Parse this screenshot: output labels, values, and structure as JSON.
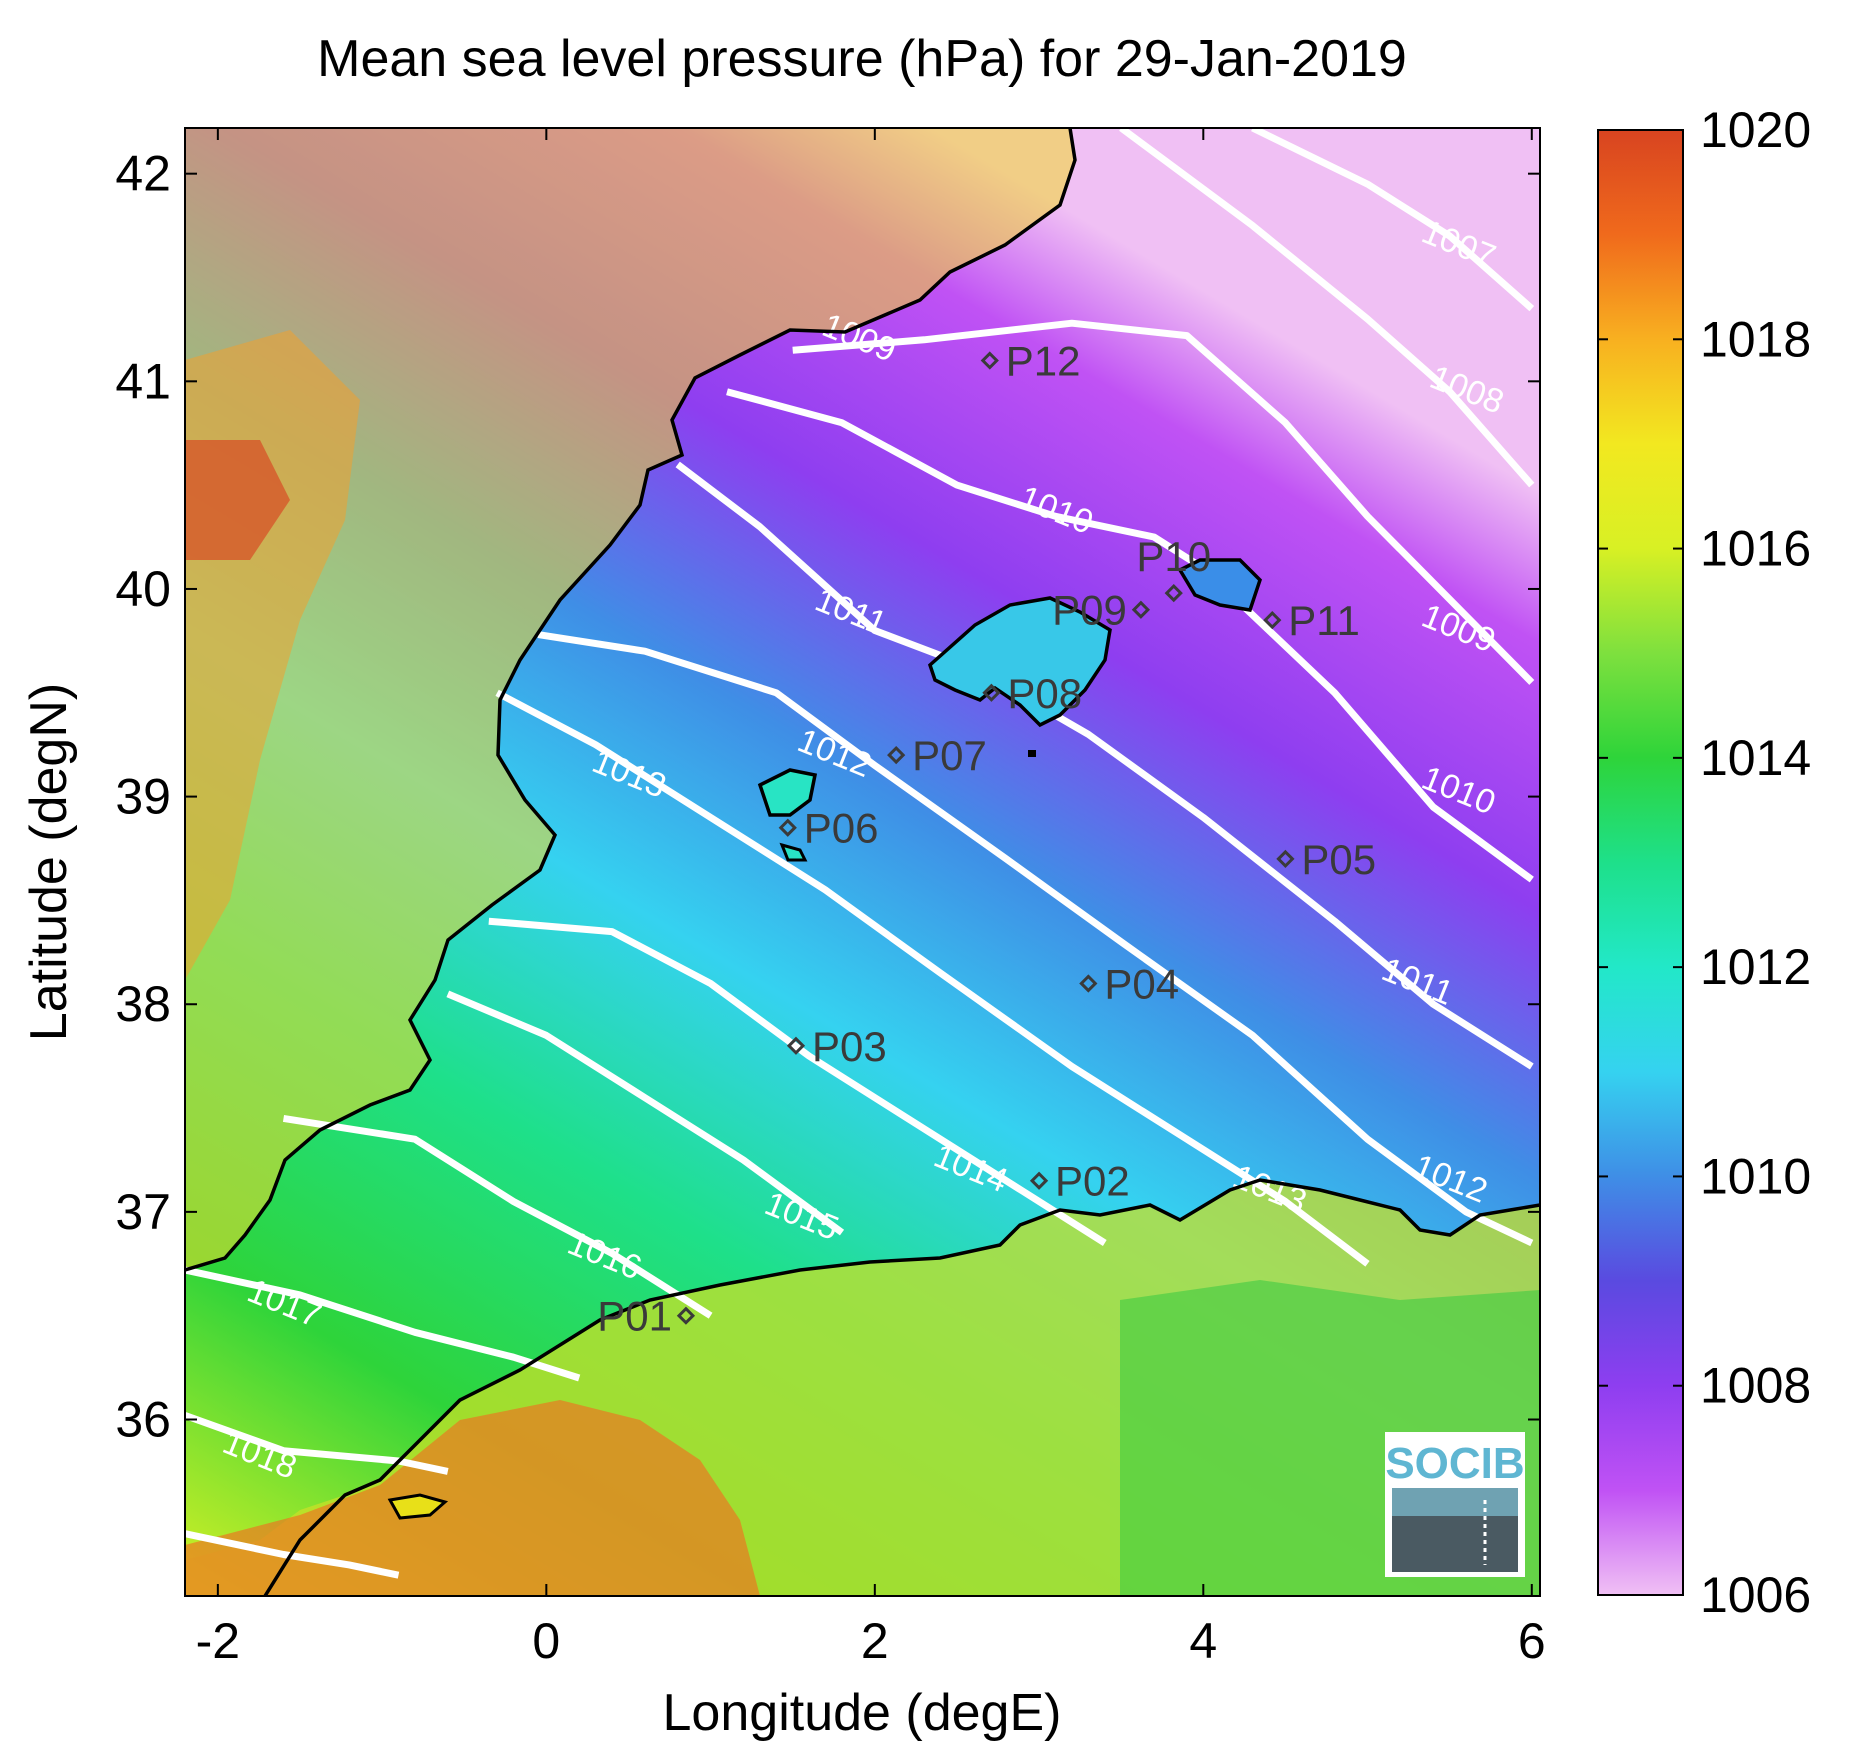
{
  "title": "Mean sea level pressure (hPa) for 29-Jan-2019",
  "xlabel": "Longitude (degE)",
  "ylabel": "Latitude (degN)",
  "logo_text": "SOCIB",
  "map": {
    "lon_range": [
      -2.2,
      6.05
    ],
    "lat_range": [
      35.15,
      42.22
    ],
    "x_ticks": [
      {
        "v": -2,
        "t": "-2"
      },
      {
        "v": 0,
        "t": "0"
      },
      {
        "v": 2,
        "t": "2"
      },
      {
        "v": 4,
        "t": "4"
      },
      {
        "v": 6,
        "t": "6"
      }
    ],
    "y_ticks": [
      {
        "v": 36,
        "t": "36"
      },
      {
        "v": 37,
        "t": "37"
      },
      {
        "v": 38,
        "t": "38"
      },
      {
        "v": 39,
        "t": "39"
      },
      {
        "v": 40,
        "t": "40"
      },
      {
        "v": 41,
        "t": "41"
      },
      {
        "v": 42,
        "t": "42"
      }
    ]
  },
  "colorbar": {
    "range": [
      1006,
      1020
    ],
    "ticks": [
      {
        "v": 1006,
        "t": "1006"
      },
      {
        "v": 1008,
        "t": "1008"
      },
      {
        "v": 1010,
        "t": "1010"
      },
      {
        "v": 1012,
        "t": "1012"
      },
      {
        "v": 1014,
        "t": "1014"
      },
      {
        "v": 1016,
        "t": "1016"
      },
      {
        "v": 1018,
        "t": "1018"
      },
      {
        "v": 1020,
        "t": "1020"
      }
    ],
    "stops": [
      {
        "v": 1006,
        "c": "#f0c0f4"
      },
      {
        "v": 1007,
        "c": "#c052f4"
      },
      {
        "v": 1008,
        "c": "#8e3ef0"
      },
      {
        "v": 1009,
        "c": "#5a4ae0"
      },
      {
        "v": 1010,
        "c": "#3f8ee6"
      },
      {
        "v": 1011,
        "c": "#35d2f0"
      },
      {
        "v": 1012,
        "c": "#22e8c8"
      },
      {
        "v": 1013,
        "c": "#1ee08a"
      },
      {
        "v": 1014,
        "c": "#2ed43a"
      },
      {
        "v": 1015,
        "c": "#7ee03e"
      },
      {
        "v": 1016,
        "c": "#d8f024"
      },
      {
        "v": 1017,
        "c": "#f2e820"
      },
      {
        "v": 1018,
        "c": "#f8b020"
      },
      {
        "v": 1019,
        "c": "#f06a1c"
      },
      {
        "v": 1020,
        "c": "#d84420"
      }
    ]
  },
  "contours": [
    {
      "label": "1007",
      "label_lon": 5.55,
      "label_lat": 41.65,
      "pts": [
        [
          4.3,
          42.22
        ],
        [
          5.0,
          41.95
        ],
        [
          5.5,
          41.7
        ],
        [
          6.0,
          41.35
        ]
      ]
    },
    {
      "label": "1008",
      "label_lon": 5.6,
      "label_lat": 40.95,
      "pts": [
        [
          3.5,
          42.22
        ],
        [
          4.3,
          41.75
        ],
        [
          5.0,
          41.3
        ],
        [
          5.5,
          40.95
        ],
        [
          6.0,
          40.5
        ]
      ]
    },
    {
      "label": "1009",
      "label_lon": 1.9,
      "label_lat": 41.2,
      "pts": [
        [
          1.5,
          41.15
        ],
        [
          2.3,
          41.2
        ],
        [
          3.2,
          41.28
        ],
        [
          3.9,
          41.22
        ],
        [
          4.5,
          40.8
        ],
        [
          5.0,
          40.35
        ],
        [
          5.5,
          39.95
        ],
        [
          6.0,
          39.55
        ]
      ]
    },
    {
      "label": "1009",
      "label_lon": 5.55,
      "label_lat": 39.8,
      "pts": []
    },
    {
      "label": "1010",
      "label_lon": 3.1,
      "label_lat": 40.37,
      "pts": [
        [
          1.1,
          40.95
        ],
        [
          1.8,
          40.8
        ],
        [
          2.5,
          40.5
        ],
        [
          3.1,
          40.35
        ],
        [
          3.7,
          40.25
        ],
        [
          4.0,
          40.1
        ],
        [
          4.8,
          39.5
        ],
        [
          5.4,
          38.95
        ],
        [
          6.0,
          38.6
        ]
      ]
    },
    {
      "label": "1010",
      "label_lon": 5.55,
      "label_lat": 39.02,
      "pts": []
    },
    {
      "label": "1011",
      "label_lon": 1.85,
      "label_lat": 39.88,
      "pts": [
        [
          0.8,
          40.6
        ],
        [
          1.3,
          40.3
        ],
        [
          2.0,
          39.8
        ],
        [
          2.6,
          39.62
        ],
        [
          3.3,
          39.3
        ],
        [
          4.0,
          38.9
        ],
        [
          4.8,
          38.4
        ],
        [
          5.4,
          38.0
        ],
        [
          6.0,
          37.7
        ]
      ]
    },
    {
      "label": "1011",
      "label_lon": 5.3,
      "label_lat": 38.1,
      "pts": []
    },
    {
      "label": "1012",
      "label_lon": 1.75,
      "label_lat": 39.2,
      "pts": [
        [
          -0.05,
          39.78
        ],
        [
          0.6,
          39.7
        ],
        [
          1.4,
          39.5
        ],
        [
          2.0,
          39.15
        ],
        [
          2.8,
          38.7
        ],
        [
          3.5,
          38.3
        ],
        [
          4.3,
          37.85
        ],
        [
          5.0,
          37.35
        ],
        [
          5.6,
          37.0
        ],
        [
          6.0,
          36.85
        ]
      ]
    },
    {
      "label": "1012",
      "label_lon": 5.5,
      "label_lat": 37.15,
      "pts": []
    },
    {
      "label": "1013",
      "label_lon": 0.5,
      "label_lat": 39.1,
      "pts": [
        [
          -0.3,
          39.5
        ],
        [
          0.3,
          39.25
        ],
        [
          1.0,
          38.9
        ],
        [
          1.7,
          38.55
        ],
        [
          2.4,
          38.15
        ],
        [
          3.2,
          37.7
        ],
        [
          3.9,
          37.35
        ],
        [
          4.5,
          37.05
        ],
        [
          5.0,
          36.75
        ]
      ]
    },
    {
      "label": "1013",
      "label_lon": 4.4,
      "label_lat": 37.1,
      "pts": []
    },
    {
      "label": "1014",
      "label_lon": 2.58,
      "label_lat": 37.2,
      "pts": [
        [
          -0.35,
          38.4
        ],
        [
          0.4,
          38.35
        ],
        [
          1.0,
          38.1
        ],
        [
          1.6,
          37.75
        ],
        [
          2.3,
          37.4
        ],
        [
          2.9,
          37.1
        ],
        [
          3.4,
          36.85
        ]
      ]
    },
    {
      "label": "1015",
      "label_lon": 1.55,
      "label_lat": 36.97,
      "pts": [
        [
          -0.6,
          38.05
        ],
        [
          0.0,
          37.85
        ],
        [
          0.6,
          37.55
        ],
        [
          1.2,
          37.25
        ],
        [
          1.8,
          36.9
        ]
      ]
    },
    {
      "label": "1016",
      "label_lon": 0.35,
      "label_lat": 36.78,
      "pts": [
        [
          -1.6,
          37.45
        ],
        [
          -0.8,
          37.35
        ],
        [
          -0.2,
          37.05
        ],
        [
          0.4,
          36.8
        ],
        [
          1.0,
          36.5
        ]
      ]
    },
    {
      "label": "1017",
      "label_lon": -1.6,
      "label_lat": 36.55,
      "pts": [
        [
          -2.2,
          36.72
        ],
        [
          -1.5,
          36.6
        ],
        [
          -0.8,
          36.42
        ],
        [
          -0.2,
          36.3
        ],
        [
          0.2,
          36.2
        ]
      ]
    },
    {
      "label": "1018",
      "label_lon": -1.75,
      "label_lat": 35.82,
      "pts": [
        [
          -2.2,
          36.02
        ],
        [
          -1.6,
          35.85
        ],
        [
          -0.9,
          35.8
        ],
        [
          -0.6,
          35.75
        ]
      ]
    },
    {
      "label": "",
      "label_lon": 0,
      "label_lat": 0,
      "pts": [
        [
          -2.2,
          35.45
        ],
        [
          -1.6,
          35.35
        ],
        [
          -1.2,
          35.3
        ],
        [
          -0.9,
          35.25
        ]
      ]
    }
  ],
  "stations": [
    {
      "id": "P01",
      "lon": 0.85,
      "lat": 36.5,
      "side": "left"
    },
    {
      "id": "P02",
      "lon": 3.0,
      "lat": 37.15,
      "side": "right"
    },
    {
      "id": "P03",
      "lon": 1.52,
      "lat": 37.8,
      "side": "right"
    },
    {
      "id": "P04",
      "lon": 3.3,
      "lat": 38.1,
      "side": "right"
    },
    {
      "id": "P05",
      "lon": 4.5,
      "lat": 38.7,
      "side": "right"
    },
    {
      "id": "P06",
      "lon": 1.47,
      "lat": 38.85,
      "side": "right"
    },
    {
      "id": "P07",
      "lon": 2.13,
      "lat": 39.2,
      "side": "right"
    },
    {
      "id": "P08",
      "lon": 2.71,
      "lat": 39.5,
      "side": "right"
    },
    {
      "id": "P09",
      "lon": 3.62,
      "lat": 39.9,
      "side": "leftfar"
    },
    {
      "id": "P10",
      "lon": 3.82,
      "lat": 39.98,
      "side": "top"
    },
    {
      "id": "P11",
      "lon": 4.42,
      "lat": 39.85,
      "side": "right"
    },
    {
      "id": "P12",
      "lon": 2.7,
      "lat": 41.1,
      "side": "right"
    }
  ]
}
